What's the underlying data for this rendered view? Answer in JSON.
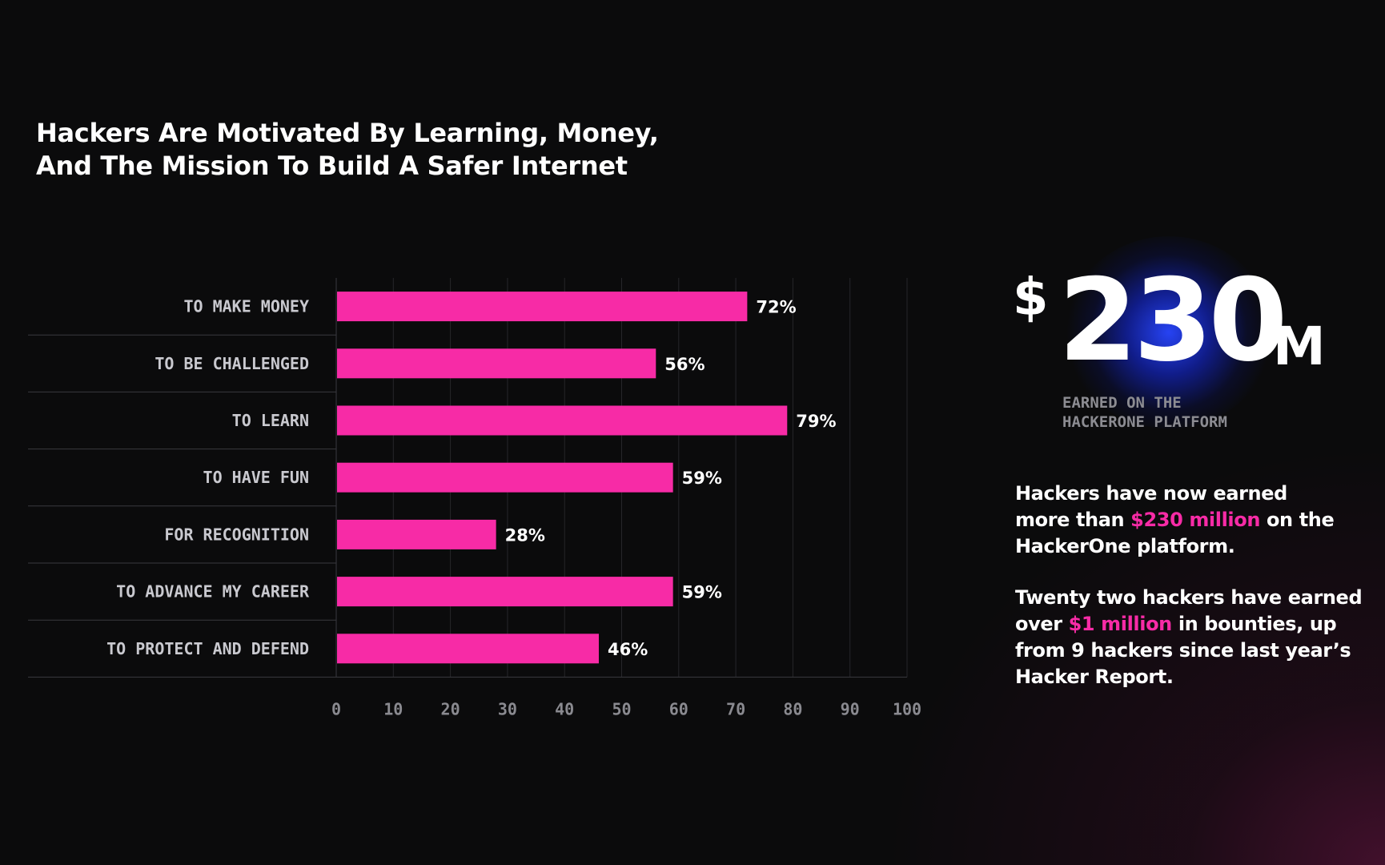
{
  "title": {
    "line1": "Hackers Are Motivated By Learning, Money,",
    "line2": "And The Mission To Build A Safer Internet"
  },
  "chart_data": {
    "type": "bar",
    "orientation": "horizontal",
    "categories": [
      "TO MAKE MONEY",
      "TO BE CHALLENGED",
      "TO LEARN",
      "TO HAVE FUN",
      "FOR RECOGNITION",
      "TO ADVANCE MY CAREER",
      "TO PROTECT AND DEFEND"
    ],
    "values": [
      72,
      56,
      79,
      59,
      28,
      59,
      46
    ],
    "value_labels": [
      "72%",
      "56%",
      "79%",
      "59%",
      "28%",
      "59%",
      "46%"
    ],
    "xlim": [
      0,
      100
    ],
    "xticks": [
      0,
      10,
      20,
      30,
      40,
      50,
      60,
      70,
      80,
      90,
      100
    ],
    "grid": true,
    "bar_color": "#f72ba6",
    "title": "Hackers Are Motivated By Learning, Money, And The Mission To Build A Safer Internet"
  },
  "stat": {
    "currency": "$",
    "number": "230",
    "unit": "M",
    "caption_line1": "EARNED ON THE",
    "caption_line2": "HACKERONE PLATFORM"
  },
  "blurb1": {
    "line1": "Hackers have now earned",
    "line2_pre": "more than ",
    "line2_hl": "$230 million",
    "line2_post": " on the",
    "line3": "HackerOne platform."
  },
  "blurb2": {
    "line1": "Twenty two hackers have earned",
    "line2_pre": "over ",
    "line2_hl": "$1 million",
    "line2_post": " in bounties, up",
    "line3": "from 9 hackers since last year’s",
    "line4": "Hacker Report."
  },
  "colors": {
    "background": "#0b0b0c",
    "accent": "#f72ba6",
    "glow": "#2846ff"
  }
}
